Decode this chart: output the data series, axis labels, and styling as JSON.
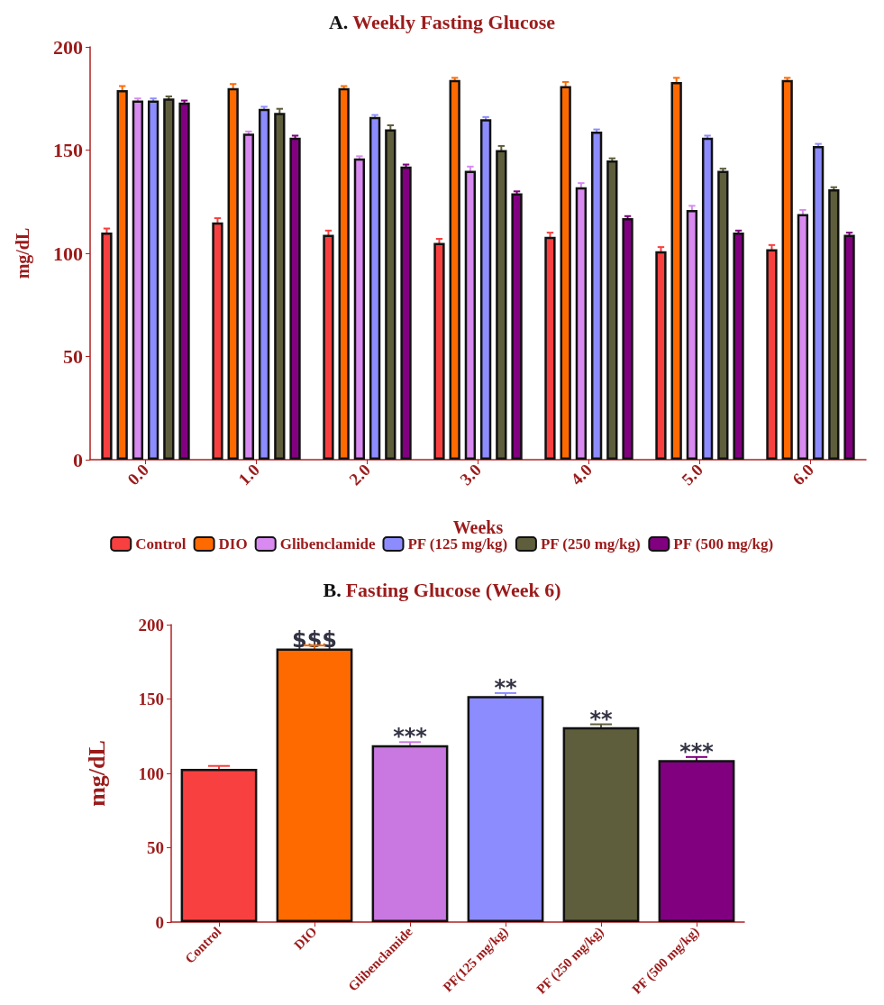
{
  "chart_data": [
    {
      "type": "bar",
      "title": "A. Weekly Fasting Glucose",
      "xlabel": "Weeks",
      "ylabel": "mg/dL",
      "categories": [
        "0.0",
        "1.0",
        "2.0",
        "3.0",
        "4.0",
        "5.0",
        "6.0"
      ],
      "series": [
        {
          "name": "Control",
          "color": "#f84040",
          "values": [
            110,
            115,
            109,
            105,
            108,
            101,
            102
          ],
          "errors": [
            2,
            2,
            2,
            2,
            2,
            2,
            2
          ]
        },
        {
          "name": "DIO",
          "color": "#ff6a00",
          "values": [
            179,
            180,
            180,
            184,
            181,
            183,
            184
          ],
          "errors": [
            2,
            2,
            1,
            1,
            2,
            2,
            1
          ]
        },
        {
          "name": "Glibenclamide",
          "color": "#d88af0",
          "values": [
            174,
            158,
            146,
            140,
            132,
            121,
            119
          ],
          "errors": [
            1,
            1,
            1,
            2,
            2,
            2,
            2
          ]
        },
        {
          "name": "PF (125 mg/kg)",
          "color": "#8c8cff",
          "values": [
            174,
            170,
            166,
            165,
            159,
            156,
            152
          ],
          "errors": [
            1,
            1,
            1,
            1,
            1,
            1,
            1
          ]
        },
        {
          "name": "PF (250 mg/kg)",
          "color": "#5e5e3c",
          "values": [
            175,
            168,
            160,
            150,
            145,
            140,
            131
          ],
          "errors": [
            1,
            2,
            2,
            2,
            1,
            1,
            1
          ]
        },
        {
          "name": "PF (500 mg/kg)",
          "color": "#800080",
          "values": [
            173,
            156,
            142,
            129,
            117,
            110,
            109
          ],
          "errors": [
            1,
            1,
            1,
            1,
            1,
            1,
            1
          ]
        }
      ],
      "ylim": [
        0,
        200
      ],
      "yticks": [
        0,
        50,
        100,
        150,
        200
      ],
      "grid": false,
      "legend": "bottom"
    },
    {
      "type": "bar",
      "title": "B. Fasting Glucose (Week 6)",
      "ylabel": "mg/dL",
      "categories": [
        "Control",
        "DIO",
        "Glibenclamide",
        "PF(125 mg/kg)",
        "PF (250 mg/kg)",
        "PF (500 mg/kg)"
      ],
      "values": [
        103,
        184,
        119,
        152,
        131,
        109
      ],
      "errors": [
        2,
        2,
        2,
        2,
        2,
        2
      ],
      "colors": [
        "#f84040",
        "#ff6a00",
        "#c878e0",
        "#8c8cff",
        "#5e5e3c",
        "#800080"
      ],
      "annotations": [
        {
          "text": "$$$",
          "x": "DIO",
          "y": 186
        },
        {
          "text": "***",
          "x": "Glibenclamide",
          "y": 121
        },
        {
          "text": "**",
          "x": "PF(125 mg/kg)",
          "y": 154
        },
        {
          "text": "**",
          "x": "PF (250 mg/kg)",
          "y": 133
        },
        {
          "text": "***",
          "x": "PF (500 mg/kg)",
          "y": 111
        }
      ],
      "ylim": [
        0,
        200
      ],
      "yticks": [
        0,
        50,
        100,
        150,
        200
      ],
      "grid": false,
      "legend": false
    }
  ]
}
